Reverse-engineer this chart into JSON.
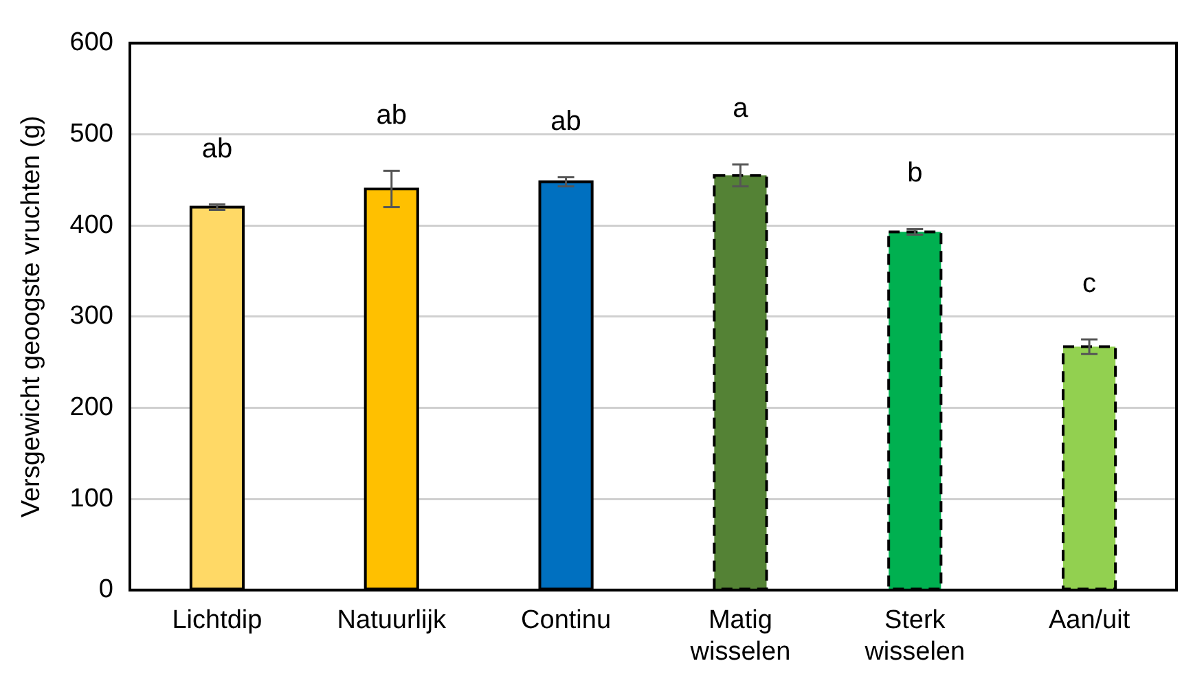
{
  "chart_data": {
    "type": "bar",
    "ylabel": "Versgewicht geoogste vruchten (g)",
    "categories": [
      "Lichtdip",
      "Natuurlijk",
      "Continu",
      "Matig wisselen",
      "Sterk wisselen",
      "Aan/uit"
    ],
    "series": [
      {
        "colors": [
          "#ffd966",
          "#ffc000",
          "#0070c0",
          null,
          null,
          null
        ],
        "line_style": "solid",
        "values": [
          420,
          440,
          448,
          null,
          null,
          null
        ],
        "errors": [
          3,
          20,
          5,
          null,
          null,
          null
        ]
      },
      {
        "colors": [
          null,
          null,
          null,
          "#548235",
          "#00b050",
          "#92d050"
        ],
        "line_style": "dashed",
        "values": [
          null,
          null,
          null,
          455,
          393,
          267
        ],
        "errors": [
          null,
          null,
          null,
          12,
          3,
          8
        ]
      }
    ],
    "ylim": [
      0,
      600
    ],
    "yticks": [
      0,
      100,
      200,
      300,
      400,
      500,
      600
    ],
    "grid": "y",
    "legend": false,
    "annotations": [
      "ab",
      "ab",
      "ab",
      "a",
      "b",
      "c"
    ]
  }
}
